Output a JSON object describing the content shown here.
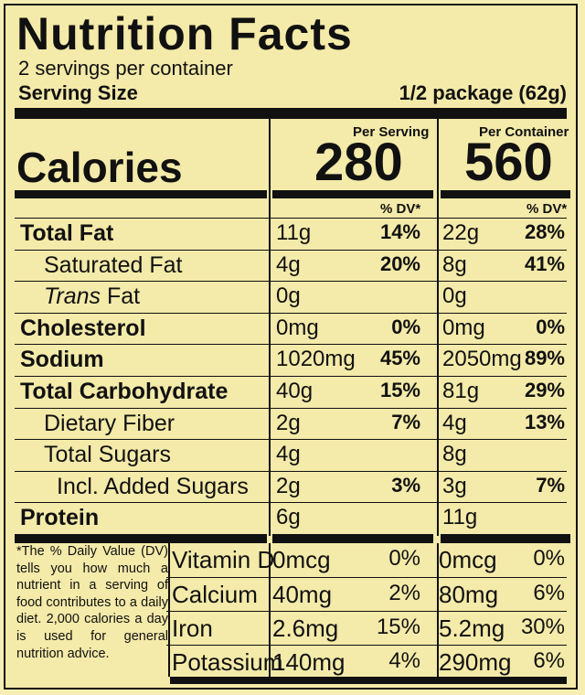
{
  "title": "Nutrition Facts",
  "servings_per_container": "2 servings per container",
  "serving_size_label": "Serving Size",
  "serving_size_value": "1/2 package (62g)",
  "per_serving_header": "Per Serving",
  "per_container_header": "Per Container",
  "calories_label": "Calories",
  "calories_serving": "280",
  "calories_container": "560",
  "dv_header": "% DV*",
  "nutrients": [
    {
      "name": "Total Fat",
      "bold": true,
      "indent": 0,
      "serving_amount": "11g",
      "serving_dv": "14%",
      "container_amount": "22g",
      "container_dv": "28%"
    },
    {
      "name": "Saturated Fat",
      "bold": false,
      "indent": 1,
      "serving_amount": "4g",
      "serving_dv": "20%",
      "container_amount": "8g",
      "container_dv": "41%"
    },
    {
      "name_italic": "Trans",
      "name": " Fat",
      "bold": false,
      "indent": 1,
      "serving_amount": "0g",
      "serving_dv": "",
      "container_amount": "0g",
      "container_dv": ""
    },
    {
      "name": "Cholesterol",
      "bold": true,
      "indent": 0,
      "serving_amount": "0mg",
      "serving_dv": "0%",
      "container_amount": "0mg",
      "container_dv": "0%"
    },
    {
      "name": "Sodium",
      "bold": true,
      "indent": 0,
      "serving_amount": "1020mg",
      "serving_dv": "45%",
      "container_amount": "2050mg",
      "container_dv": "89%"
    },
    {
      "name": "Total Carbohydrate",
      "bold": true,
      "indent": 0,
      "serving_amount": "40g",
      "serving_dv": "15%",
      "container_amount": "81g",
      "container_dv": "29%"
    },
    {
      "name": "Dietary Fiber",
      "bold": false,
      "indent": 1,
      "serving_amount": "2g",
      "serving_dv": "7%",
      "container_amount": "4g",
      "container_dv": "13%"
    },
    {
      "name": "Total Sugars",
      "bold": false,
      "indent": 1,
      "serving_amount": "4g",
      "serving_dv": "",
      "container_amount": "8g",
      "container_dv": ""
    },
    {
      "name": "Incl. Added Sugars",
      "bold": false,
      "indent": 2,
      "serving_amount": "2g",
      "serving_dv": "3%",
      "container_amount": "3g",
      "container_dv": "7%"
    },
    {
      "name": "Protein",
      "bold": true,
      "indent": 0,
      "serving_amount": "6g",
      "serving_dv": "",
      "container_amount": "11g",
      "container_dv": ""
    }
  ],
  "vitamins": [
    {
      "name": "Vitamin D",
      "serving_amount": "0mcg",
      "serving_dv": "0%",
      "container_amount": "0mcg",
      "container_dv": "0%"
    },
    {
      "name": "Calcium",
      "serving_amount": "40mg",
      "serving_dv": "2%",
      "container_amount": "80mg",
      "container_dv": "6%"
    },
    {
      "name": "Iron",
      "serving_amount": "2.6mg",
      "serving_dv": "15%",
      "container_amount": "5.2mg",
      "container_dv": "30%"
    },
    {
      "name": "Potassium",
      "serving_amount": "140mg",
      "serving_dv": "4%",
      "container_amount": "290mg",
      "container_dv": "6%"
    }
  ],
  "footnote": "*The % Daily Value (DV) tells you how much a nutrient in a serving of food contributes to a daily diet. 2,000 calories a day is used for general nutrition advice.",
  "colors": {
    "background": "#f4eaa9",
    "ink": "#111111"
  }
}
